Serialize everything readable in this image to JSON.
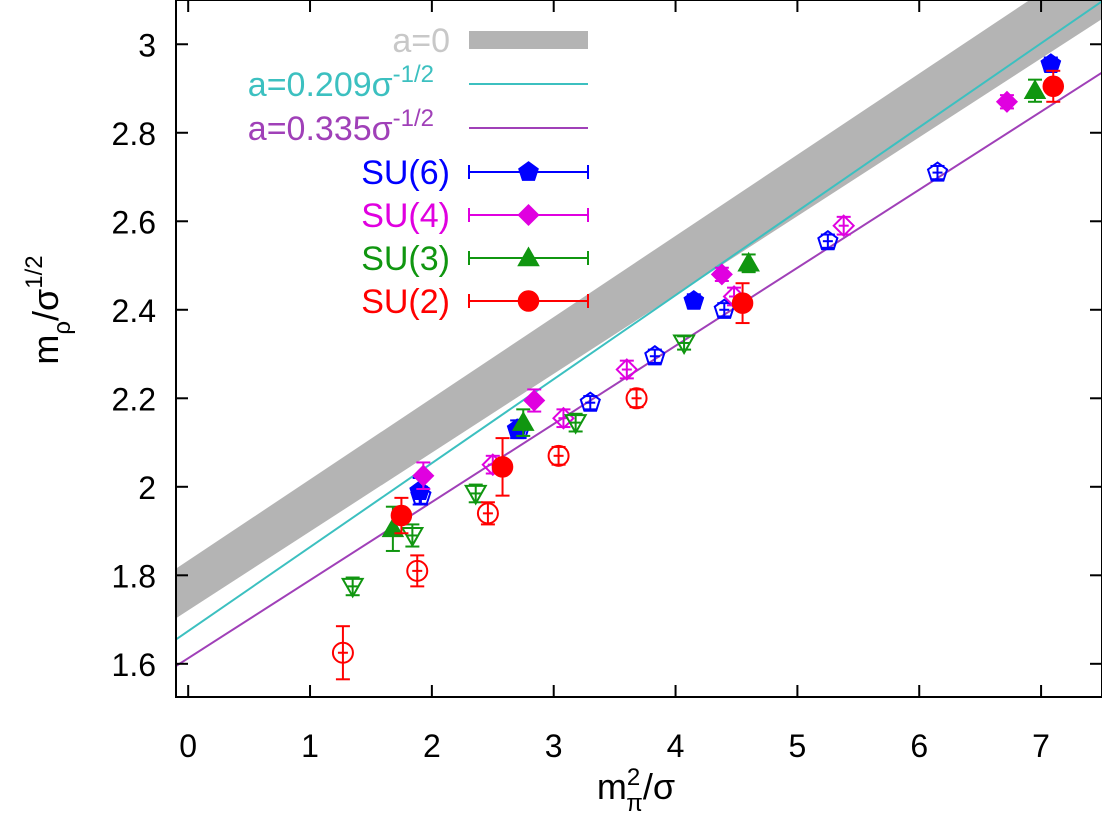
{
  "chart_data": {
    "type": "scatter",
    "xlim": [
      -0.1,
      7.5
    ],
    "ylim": [
      1.525,
      3.1
    ],
    "grid": false,
    "legend_position": "top-left",
    "x_ticks": [
      0,
      1,
      2,
      3,
      4,
      5,
      6,
      7
    ],
    "y_ticks": [
      1.6,
      1.8,
      2,
      2.2,
      2.4,
      2.6,
      2.8,
      3
    ],
    "x_tick_labels": [
      "0",
      "1",
      "2",
      "3",
      "4",
      "5",
      "6",
      "7"
    ],
    "y_tick_labels": [
      "1.6",
      "1.8",
      "2",
      "2.2",
      "2.4",
      "2.6",
      "2.8",
      "3"
    ],
    "xlabel": {
      "main": "m",
      "sup": "2",
      "sub": "π",
      "rest": "/σ"
    },
    "ylabel": {
      "main": "m",
      "sub": "ρ",
      "rest": "/σ",
      "sup": "1/2"
    },
    "band": {
      "label": "a=0",
      "color": "#b4b4b4",
      "lower": [
        [
          -0.1,
          1.703
        ],
        [
          7.5,
          3.057
        ]
      ],
      "upper": [
        [
          -0.1,
          1.815
        ],
        [
          7.5,
          3.209
        ]
      ]
    },
    "lines": [
      {
        "label_main": "a=0.209σ",
        "label_sup": "-1/2",
        "color": "#3cc0c0",
        "points": [
          [
            -0.1,
            1.655
          ],
          [
            7.5,
            3.097
          ]
        ]
      },
      {
        "label_main": "a=0.335σ",
        "label_sup": "-1/2",
        "color": "#a040b8",
        "points": [
          [
            -0.1,
            1.595
          ],
          [
            7.5,
            2.936
          ]
        ]
      }
    ],
    "series": [
      {
        "name": "SU(6)",
        "color": "#0000ff",
        "marker": "pentagon",
        "filled": [
          [
            1.9,
            1.99,
            0.03
          ],
          [
            2.7,
            2.13,
            0.02
          ],
          [
            4.15,
            2.42,
            0.015
          ],
          [
            7.08,
            2.955,
            0.015
          ]
        ],
        "open": [
          [
            1.91,
            1.98,
            0.02
          ],
          [
            2.72,
            2.13,
            0.02
          ],
          [
            3.3,
            2.19,
            0.015
          ],
          [
            3.83,
            2.295,
            0.015
          ],
          [
            4.4,
            2.4,
            0.015
          ],
          [
            5.25,
            2.555,
            0.015
          ],
          [
            6.15,
            2.71,
            0.015
          ]
        ]
      },
      {
        "name": "SU(4)",
        "color": "#e000e0",
        "marker": "diamond",
        "filled": [
          [
            1.93,
            2.025,
            0.03
          ],
          [
            2.84,
            2.195,
            0.025
          ],
          [
            4.38,
            2.48,
            0.015
          ],
          [
            6.72,
            2.87,
            0.015
          ]
        ],
        "open": [
          [
            2.5,
            2.05,
            0.02
          ],
          [
            3.08,
            2.155,
            0.02
          ],
          [
            3.6,
            2.265,
            0.02
          ],
          [
            4.48,
            2.43,
            0.02
          ],
          [
            5.38,
            2.59,
            0.02
          ]
        ]
      },
      {
        "name": "SU(3)",
        "color": "#109610",
        "marker": "triangle",
        "filled": [
          [
            1.68,
            1.905,
            0.05
          ],
          [
            2.75,
            2.145,
            0.03
          ],
          [
            4.6,
            2.505,
            0.02
          ],
          [
            6.95,
            2.895,
            0.025
          ]
        ],
        "open": [
          [
            1.35,
            1.775,
            0.02
          ],
          [
            1.84,
            1.89,
            0.025
          ],
          [
            2.36,
            1.985,
            0.02
          ],
          [
            3.18,
            2.145,
            0.02
          ],
          [
            4.07,
            2.325,
            0.015
          ]
        ]
      },
      {
        "name": "SU(2)",
        "color": "#ff0000",
        "marker": "circle",
        "filled": [
          [
            1.75,
            1.935,
            0.04
          ],
          [
            2.58,
            2.045,
            0.065
          ],
          [
            4.55,
            2.415,
            0.045
          ],
          [
            7.1,
            2.905,
            0.035
          ]
        ],
        "open": [
          [
            1.27,
            1.625,
            0.06
          ],
          [
            1.88,
            1.81,
            0.035
          ],
          [
            2.46,
            1.94,
            0.025
          ],
          [
            3.04,
            2.07,
            0.02
          ],
          [
            3.68,
            2.2,
            0.02
          ]
        ]
      }
    ]
  }
}
